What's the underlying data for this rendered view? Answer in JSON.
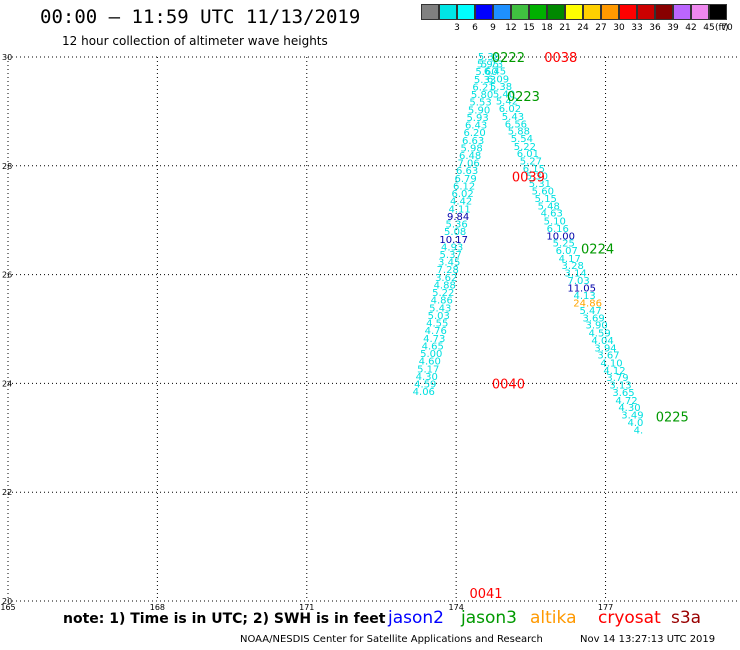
{
  "header": {
    "title": "00:00 – 11:59 UTC 11/13/2019",
    "subtitle": "12 hour collection of altimeter wave heights"
  },
  "legend": {
    "labels": [
      "",
      "3",
      "6",
      "9",
      "12",
      "15",
      "18",
      "21",
      "24",
      "27",
      "30",
      "33",
      "36",
      "39",
      "42",
      "45",
      "70"
    ],
    "colors": [
      "#808080",
      "#00e5e5",
      "#00ffff",
      "#0000ff",
      "#1e90ff",
      "#40c040",
      "#00b000",
      "#008800",
      "#ffff00",
      "#ffd000",
      "#ff9900",
      "#ff0000",
      "#cc0000",
      "#880000",
      "#bb66ff",
      "#ee88ee",
      "#000000"
    ],
    "unit": "(ft)"
  },
  "map": {
    "lat_labels": [
      "30",
      "28",
      "26",
      "24",
      "22",
      "20"
    ],
    "lon_labels": [
      "165",
      "168",
      "171",
      "174",
      "177"
    ],
    "lat_range": [
      20,
      30
    ],
    "lon_range": [
      165,
      179.7
    ],
    "track_colors": {
      "jason2": "#0000ff",
      "jason3": "#009900",
      "altika": "#ff9900",
      "cryosat": "#ff0000",
      "s3a": "#990000"
    },
    "value_colors": {
      "normal": "#00e0e0",
      "high": "#0000aa",
      "extreme": "#ffa500"
    },
    "tracks": [
      {
        "satellite": "cryosat",
        "color_key": "cryosat",
        "lat": [
          30.0,
          29.86,
          29.73,
          29.59,
          29.45,
          29.31,
          29.18,
          29.04,
          28.9,
          28.76,
          28.63,
          28.49,
          28.35,
          28.22,
          28.08,
          27.94,
          27.8,
          27.67,
          27.53,
          27.39,
          27.25,
          27.12,
          26.98,
          26.84,
          26.7,
          26.57,
          26.43,
          26.29,
          26.16,
          26.02,
          25.88,
          25.74,
          25.61,
          25.47,
          25.33,
          25.19,
          25.06,
          24.92,
          24.78,
          24.64,
          24.51,
          24.37,
          24.23,
          24.1,
          23.96,
          23.82,
          23.68,
          23.55,
          23.41,
          23.27,
          23.13,
          23.0,
          22.86,
          22.72,
          22.58,
          22.45,
          22.31,
          22.17,
          22.04,
          21.9,
          21.76,
          21.62,
          21.49,
          21.35,
          21.21,
          21.07,
          20.94,
          20.8,
          20.66,
          20.52,
          20.39,
          20.25,
          20.11
        ],
        "lon": [
          174.66,
          174.72,
          174.78,
          174.84,
          174.9,
          174.96,
          175.02,
          175.08,
          175.14,
          175.2,
          175.26,
          175.32,
          175.38,
          175.44,
          175.5,
          175.56,
          175.62,
          175.68,
          175.74,
          175.8,
          175.86,
          175.92,
          175.98,
          176.04,
          176.1,
          176.16,
          176.22,
          176.28,
          176.34,
          176.4,
          176.46,
          176.52,
          176.58,
          176.64,
          176.7,
          176.76,
          176.82,
          176.88,
          176.94,
          177.0,
          177.06,
          177.12,
          177.18,
          177.24,
          177.3,
          177.36,
          177.42,
          177.48,
          177.54,
          177.6,
          177.66,
          177.72,
          177.78,
          177.84,
          177.9,
          177.96,
          178.02,
          178.08,
          178.14,
          178.2,
          178.26,
          178.32,
          178.38,
          178.44,
          178.5,
          178.56,
          178.62,
          178.68,
          178.74,
          178.8,
          178.86,
          178.92,
          178.98
        ],
        "values": [
          "5.38",
          "5.73",
          "6.45",
          "6.09",
          "5.38",
          "5.40",
          "5.42",
          "6.02",
          "5.43",
          "6.56",
          "5.88",
          "5.54",
          "5.22",
          "6.01",
          "5.27",
          "6.15",
          "5.30",
          "5.31",
          "5.60",
          "5.15",
          "5.48",
          "4.63",
          "5.10",
          "6.16",
          "10.00",
          "5.25",
          "6.07",
          "4.17",
          "3.28",
          "3.14",
          "7.03",
          "11.05",
          "4.13",
          "24.86",
          "5.47",
          "3.69",
          "3.90",
          "4.59",
          "4.04",
          "3.94",
          "3.67",
          "4.10",
          "4.12",
          "3.79",
          "3.13",
          "3.65",
          "4.72",
          "4.30",
          "3.49",
          "4.0",
          "4.",
          "",
          "",
          "",
          "",
          "",
          "",
          "",
          "",
          "",
          "",
          "",
          "",
          "",
          "",
          "",
          "",
          "",
          "",
          "",
          "",
          "",
          ""
        ]
      },
      {
        "satellite": "jason3",
        "color_key": "jason3",
        "lat": [
          30.0,
          29.86,
          29.72,
          29.58,
          29.44,
          29.3,
          29.16,
          29.02,
          28.88,
          28.74,
          28.6,
          28.46,
          28.32,
          28.18,
          28.04,
          27.9,
          27.76,
          27.62,
          27.48,
          27.34,
          27.2,
          27.06,
          26.92,
          26.78,
          26.64,
          26.5,
          26.36,
          26.22,
          26.08,
          25.94,
          25.8,
          25.66,
          25.52,
          25.38,
          25.24,
          25.1,
          24.96,
          24.82,
          24.68,
          24.54,
          24.4,
          24.26,
          24.12,
          23.98,
          23.84,
          23.7,
          23.56,
          23.42,
          23.28,
          23.14,
          23.0,
          22.86,
          22.72,
          22.58,
          22.44,
          22.3,
          22.16,
          22.02,
          21.88,
          21.74,
          21.6,
          21.46,
          21.32,
          21.18,
          21.04,
          20.9,
          20.76,
          20.62,
          20.48,
          20.34,
          20.2,
          20.06
        ],
        "lon": [
          174.67,
          174.64,
          174.61,
          174.58,
          174.55,
          174.52,
          174.49,
          174.46,
          174.43,
          174.4,
          174.37,
          174.34,
          174.31,
          174.28,
          174.25,
          174.22,
          174.19,
          174.16,
          174.13,
          174.1,
          174.07,
          174.04,
          174.01,
          173.98,
          173.95,
          173.92,
          173.89,
          173.86,
          173.83,
          173.8,
          173.77,
          173.74,
          173.71,
          173.68,
          173.65,
          173.62,
          173.59,
          173.56,
          173.53,
          173.5,
          173.47,
          173.44,
          173.41,
          173.38,
          173.35,
          173.32,
          173.29,
          173.26,
          173.23,
          173.2,
          173.17,
          173.14,
          173.11,
          173.08,
          173.05,
          173.02,
          172.99,
          172.96,
          172.93,
          172.9,
          172.87,
          172.84,
          172.81,
          172.78,
          172.75,
          172.72,
          172.69,
          172.66,
          172.63,
          172.6,
          172.57,
          172.54
        ],
        "values": [
          "",
          "5.95",
          "5.60",
          "5.33",
          "6.21",
          "5.80",
          "5.53",
          "5.90",
          "5.93",
          "6.43",
          "6.20",
          "6.63",
          "5.98",
          "6.48",
          "7.06",
          "6.63",
          "6.79",
          "6.12",
          "6.02",
          "4.42",
          "4.11",
          "9.84",
          "5.36",
          "5.08",
          "10.17",
          "4.93",
          "5.37",
          "3.45",
          "7.28",
          "3.62",
          "4.88",
          "5.22",
          "4.86",
          "5.43",
          "5.03",
          "4.55",
          "4.76",
          "4.73",
          "4.65",
          "5.00",
          "4.60",
          "5.17",
          "4.30",
          "4.59",
          "4.06",
          "",
          "",
          "",
          "",
          "",
          "",
          "",
          "",
          "",
          "",
          "",
          "",
          "",
          "",
          "",
          "",
          "",
          "",
          "",
          "",
          "",
          "",
          "",
          "",
          "",
          "",
          ""
        ]
      }
    ],
    "pass_labels": [
      {
        "text": "0222",
        "color_key": "jason3",
        "lat": 30.0,
        "lon": 175.05
      },
      {
        "text": "0038",
        "color_key": "cryosat",
        "lat": 30.0,
        "lon": 176.1
      },
      {
        "text": "0223",
        "color_key": "jason3",
        "lat": 29.28,
        "lon": 175.35
      },
      {
        "text": "0039",
        "color_key": "cryosat",
        "lat": 27.8,
        "lon": 175.45
      },
      {
        "text": "0224",
        "color_key": "jason3",
        "lat": 26.48,
        "lon": 176.84
      },
      {
        "text": "0040",
        "color_key": "cryosat",
        "lat": 24.0,
        "lon": 175.05
      },
      {
        "text": "0225",
        "color_key": "jason3",
        "lat": 23.39,
        "lon": 178.34
      },
      {
        "text": "0041",
        "color_key": "cryosat",
        "lat": 20.15,
        "lon": 174.6
      }
    ]
  },
  "note": "note:  1) Time is in UTC;  2) SWH is in feet",
  "satellites": [
    {
      "name": "jason2",
      "color": "#0000ff"
    },
    {
      "name": "jason3",
      "color": "#009900"
    },
    {
      "name": "altika",
      "color": "#ff9900"
    },
    {
      "name": "cryosat",
      "color": "#ff0000"
    },
    {
      "name": "s3a",
      "color": "#990000"
    }
  ],
  "credit": "NOAA/NESDIS Center for Satellite Applications and Research",
  "timestamp": "Nov 14 13:27:13 UTC 2019"
}
